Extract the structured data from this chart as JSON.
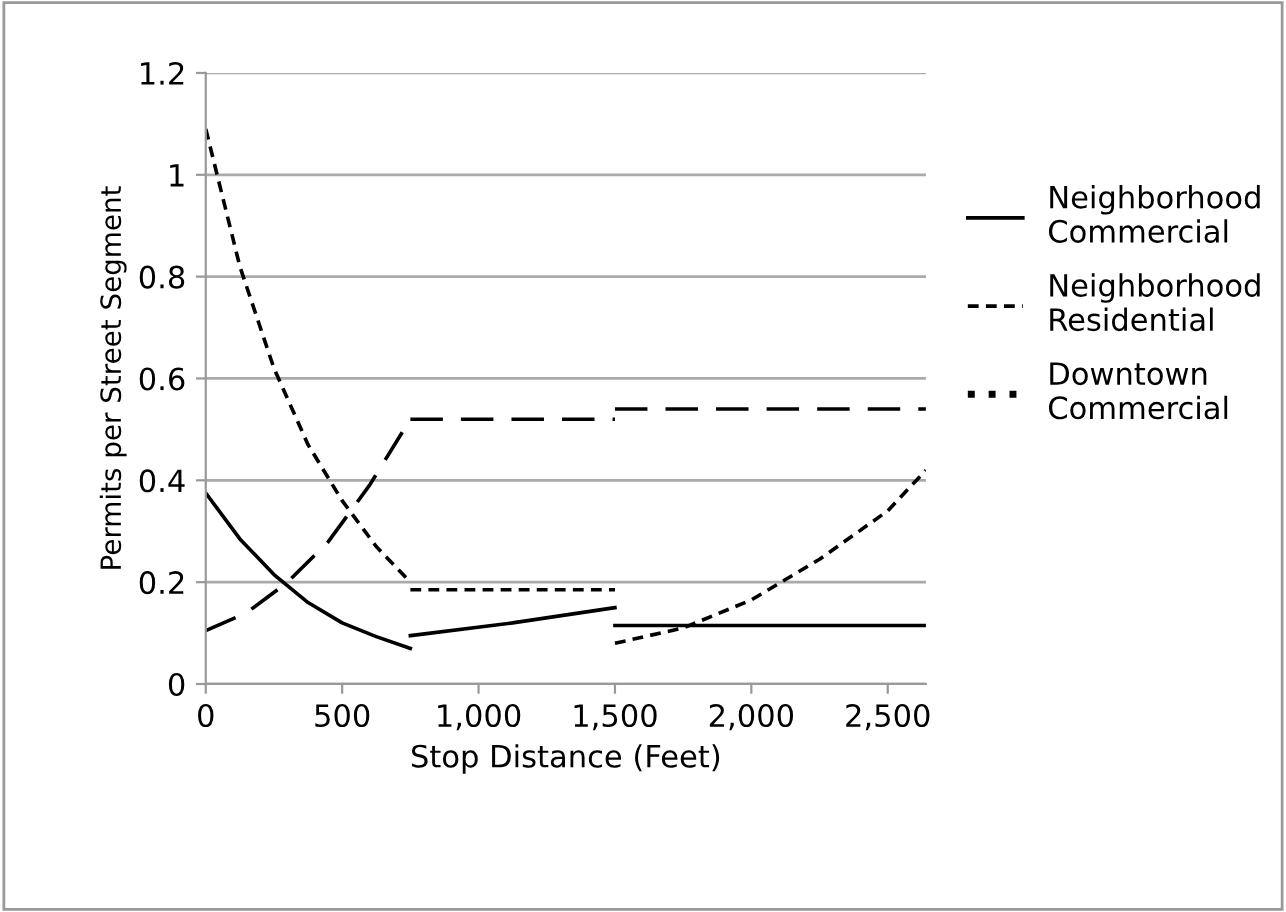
{
  "chart_data": {
    "type": "line",
    "xlabel": "Stop Distance (Feet)",
    "ylabel": "Permits per Street Segment",
    "xlim": [
      0,
      2640
    ],
    "xticks": [
      0,
      {
        "value": 500,
        "label": "500"
      },
      {
        "value": 1000,
        "label": "1,000"
      },
      {
        "value": 1500,
        "label": "1,500"
      },
      {
        "value": 2000,
        "label": "2,000"
      },
      {
        "value": 2500,
        "label": "2,500"
      }
    ],
    "ylim": [
      0,
      1.2
    ],
    "yticks": [
      0,
      0.2,
      0.4,
      0.6,
      0.8,
      1,
      1.2
    ],
    "grid": "y",
    "legend": "right",
    "series": [
      {
        "name": "Neighborhood Commercial",
        "color": "#000000",
        "line_style": "solid",
        "x": [
          0,
          125,
          250,
          375,
          500,
          625,
          750
        ],
        "values": [
          0.375,
          0.285,
          0.215,
          0.16,
          0.12,
          0.093,
          0.07
        ]
      },
      {
        "color": "#000000",
        "line_style": "solid",
        "x": [
          750,
          1125,
          1500
        ],
        "values": [
          0.095,
          0.12,
          0.15
        ]
      },
      {
        "color": "#000000",
        "line_style": "solid",
        "x": [
          1500,
          2640
        ],
        "values": [
          0.115,
          0.115
        ]
      },
      {
        "name": "Neighborhood Residential",
        "color": "#000000",
        "line_style": "dashed",
        "x": [
          0,
          125,
          250,
          375,
          500,
          625,
          750
        ],
        "values": [
          1.09,
          0.82,
          0.62,
          0.47,
          0.36,
          0.27,
          0.2
        ]
      },
      {
        "color": "#000000",
        "line_style": "dashed",
        "x": [
          750,
          1500
        ],
        "values": [
          0.185,
          0.185
        ]
      },
      {
        "color": "#000000",
        "line_style": "dashed",
        "x": [
          1500,
          1750,
          2000,
          2250,
          2500,
          2640
        ],
        "values": [
          0.08,
          0.11,
          0.165,
          0.245,
          0.34,
          0.42
        ]
      },
      {
        "name": "Downtown Commercial",
        "color": "#000000",
        "line_style": "dotted",
        "x": [
          0,
          150,
          300,
          450,
          600,
          750
        ],
        "values": [
          0.105,
          0.14,
          0.2,
          0.28,
          0.39,
          0.52
        ]
      },
      {
        "color": "#000000",
        "line_style": "dotted",
        "x": [
          750,
          1500
        ],
        "values": [
          0.52,
          0.52
        ]
      },
      {
        "color": "#000000",
        "line_style": "dotted",
        "x": [
          1500,
          2640
        ],
        "values": [
          0.54,
          0.54
        ]
      }
    ]
  }
}
